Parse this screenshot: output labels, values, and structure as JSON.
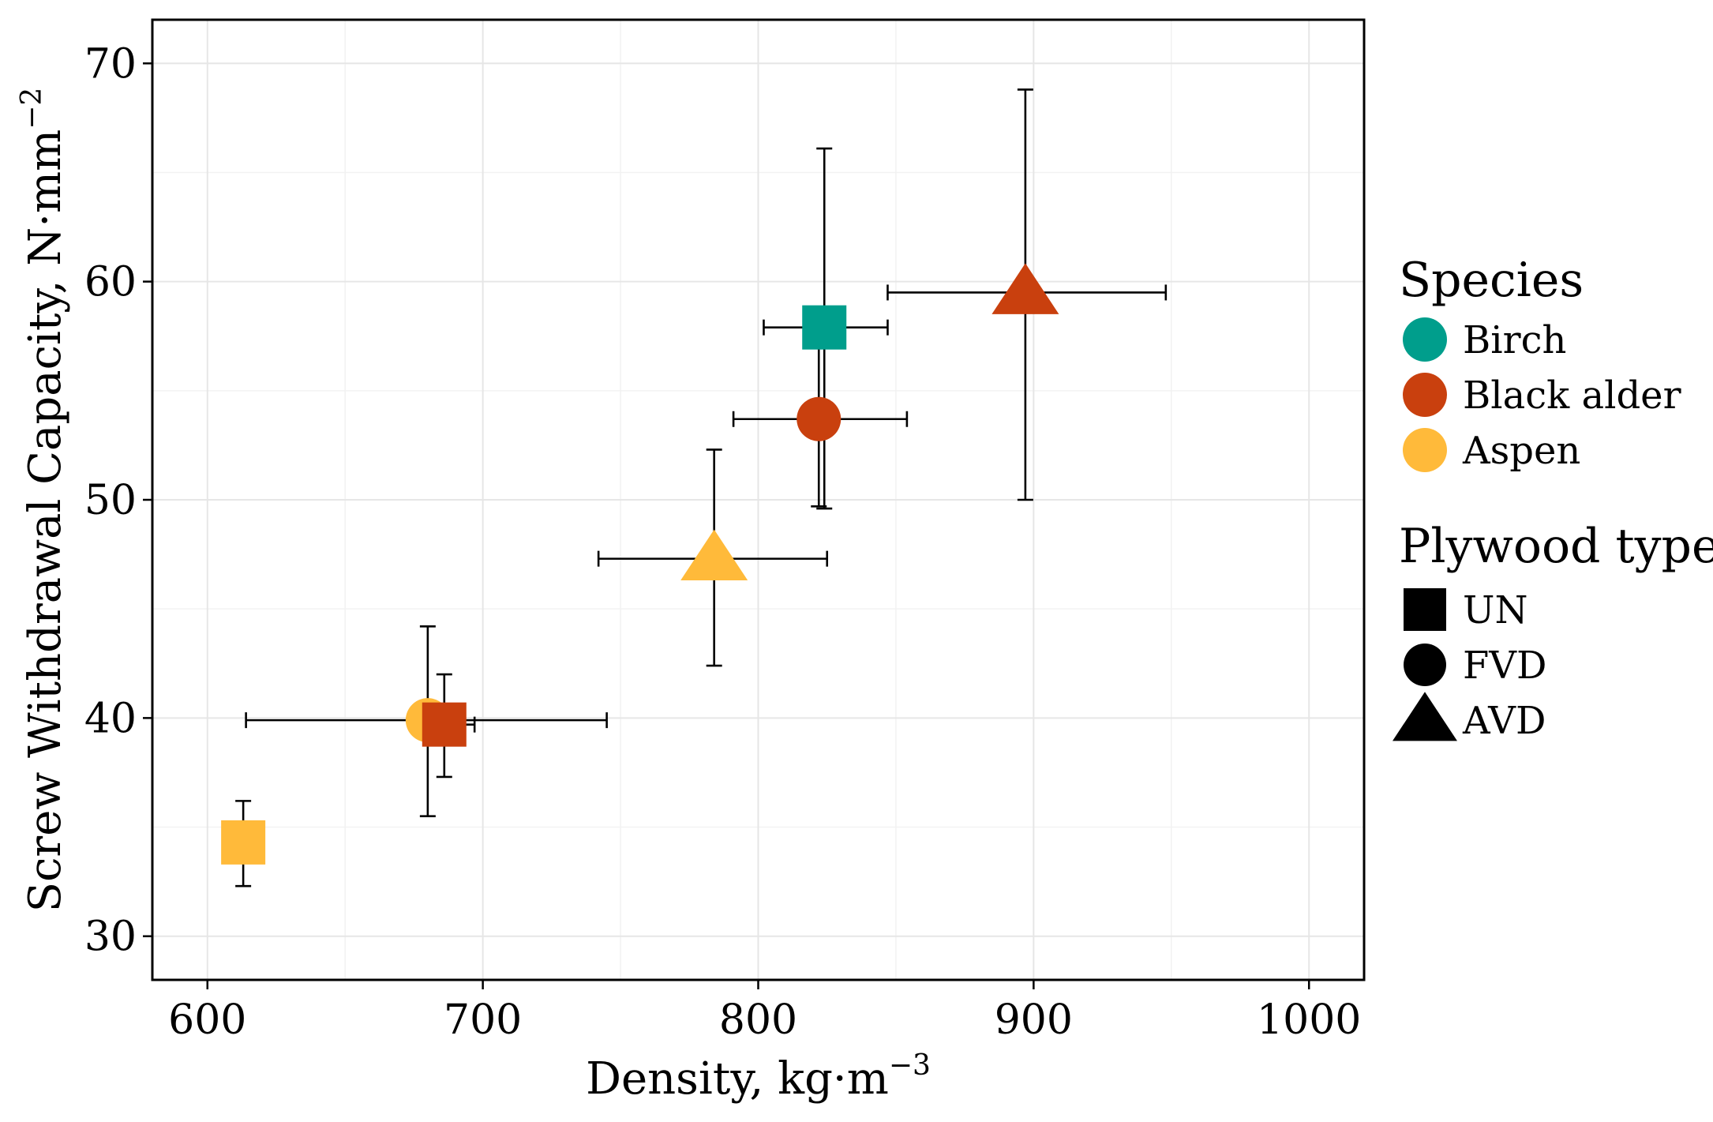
{
  "chart_data": {
    "type": "scatter",
    "xlabel": "Density, kg·m",
    "xlabel_sup": "−3",
    "ylabel": "Screw Withdrawal Capacity, N·mm",
    "ylabel_sup": "−2",
    "xlim": [
      580,
      1020
    ],
    "ylim": [
      28,
      72
    ],
    "x_ticks": [
      "600",
      "700",
      "800",
      "900",
      "1000"
    ],
    "y_ticks": [
      "30",
      "40",
      "50",
      "60",
      "70"
    ],
    "grid": true,
    "legend_placement": "right",
    "legend": {
      "species_title": "Species",
      "species": [
        {
          "name": "Birch",
          "color": "#009E8C"
        },
        {
          "name": "Black alder",
          "color": "#C9400E"
        },
        {
          "name": "Aspen",
          "color": "#FFBA3A"
        }
      ],
      "type_title": "Plywood type",
      "types": [
        {
          "name": "UN",
          "shape": "square"
        },
        {
          "name": "FVD",
          "shape": "circle"
        },
        {
          "name": "AVD",
          "shape": "triangle"
        }
      ]
    },
    "points": [
      {
        "species": "Aspen",
        "type": "UN",
        "x": 613,
        "x_err": [
          609,
          617
        ],
        "y": 34.3,
        "y_err": [
          32.3,
          36.2
        ]
      },
      {
        "species": "Aspen",
        "type": "FVD",
        "x": 680,
        "x_err": [
          614,
          745
        ],
        "y": 39.9,
        "y_err": [
          35.5,
          44.2
        ]
      },
      {
        "species": "Black alder",
        "type": "UN",
        "x": 686,
        "x_err": [
          676,
          697
        ],
        "y": 39.7,
        "y_err": [
          37.3,
          42.0
        ]
      },
      {
        "species": "Aspen",
        "type": "AVD",
        "x": 784,
        "x_err": [
          742,
          825
        ],
        "y": 47.3,
        "y_err": [
          42.4,
          52.3
        ]
      },
      {
        "species": "Black alder",
        "type": "FVD",
        "x": 822,
        "x_err": [
          791,
          854
        ],
        "y": 53.7,
        "y_err": [
          49.7,
          57.6
        ]
      },
      {
        "species": "Birch",
        "type": "UN",
        "x": 824,
        "x_err": [
          802,
          847
        ],
        "y": 57.9,
        "y_err": [
          49.6,
          66.1
        ]
      },
      {
        "species": "Black alder",
        "type": "AVD",
        "x": 897,
        "x_err": [
          847,
          948
        ],
        "y": 59.5,
        "y_err": [
          50.0,
          68.8
        ]
      }
    ]
  }
}
